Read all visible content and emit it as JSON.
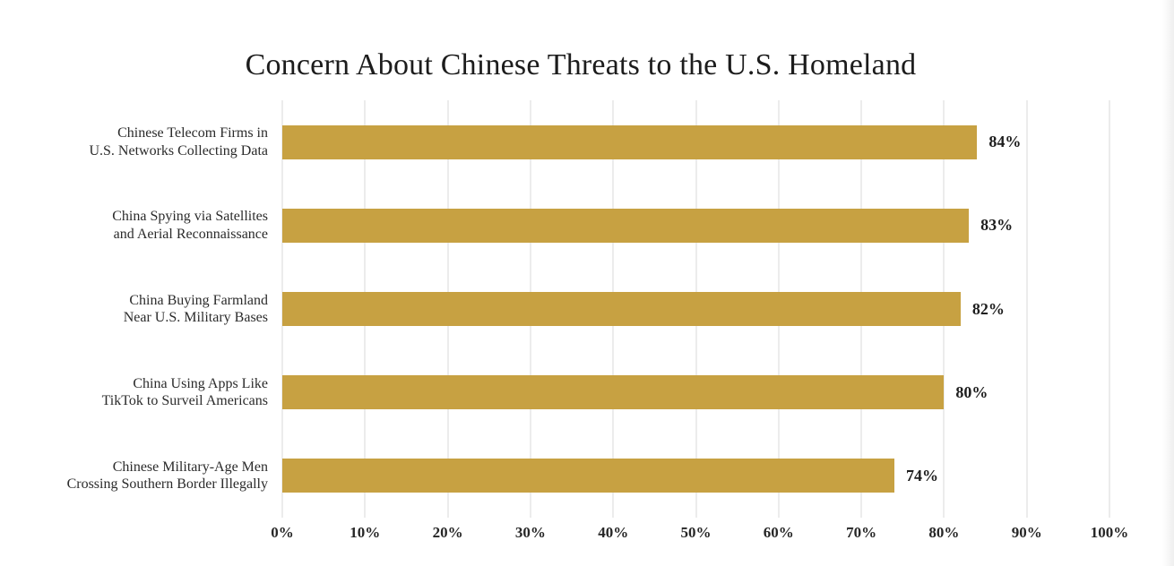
{
  "chart_data": {
    "type": "bar",
    "orientation": "horizontal",
    "title": "Concern About Chinese Threats to the U.S. Homeland",
    "categories": [
      "Chinese Telecom Firms in U.S. Networks Collecting Data",
      "China Spying via Satellites and Aerial Reconnaissance",
      "China Buying Farmland Near U.S. Military Bases",
      "China Using Apps Like TikTok to Surveil Americans",
      "Chinese Military-Age Men Crossing Southern Border Illegally"
    ],
    "values": [
      84,
      83,
      82,
      80,
      74
    ],
    "rows": [
      {
        "label_lines": [
          "Chinese Telecom Firms in",
          "U.S. Networks Collecting Data"
        ],
        "value": 84,
        "value_label": "84%"
      },
      {
        "label_lines": [
          "China Spying via Satellites",
          "and Aerial Reconnaissance"
        ],
        "value": 83,
        "value_label": "83%"
      },
      {
        "label_lines": [
          "China Buying Farmland",
          "Near U.S. Military Bases"
        ],
        "value": 82,
        "value_label": "82%"
      },
      {
        "label_lines": [
          "China Using Apps Like",
          "TikTok to Surveil Americans"
        ],
        "value": 80,
        "value_label": "80%"
      },
      {
        "label_lines": [
          "Chinese Military-Age Men",
          "Crossing Southern Border Illegally"
        ],
        "value": 74,
        "value_label": "74%"
      }
    ],
    "x_ticks": [
      "0%",
      "10%",
      "20%",
      "30%",
      "40%",
      "50%",
      "60%",
      "70%",
      "80%",
      "90%",
      "100%"
    ],
    "xlim": [
      0,
      100
    ],
    "grid": true,
    "legend": false,
    "xlabel": "",
    "ylabel": "",
    "bar_color": "#c7a142",
    "gridline_color": "#d9d9d9",
    "title_color": "#1c1c1c",
    "label_color": "#2b2b2b",
    "value_label_color": "#1e1e1e"
  }
}
